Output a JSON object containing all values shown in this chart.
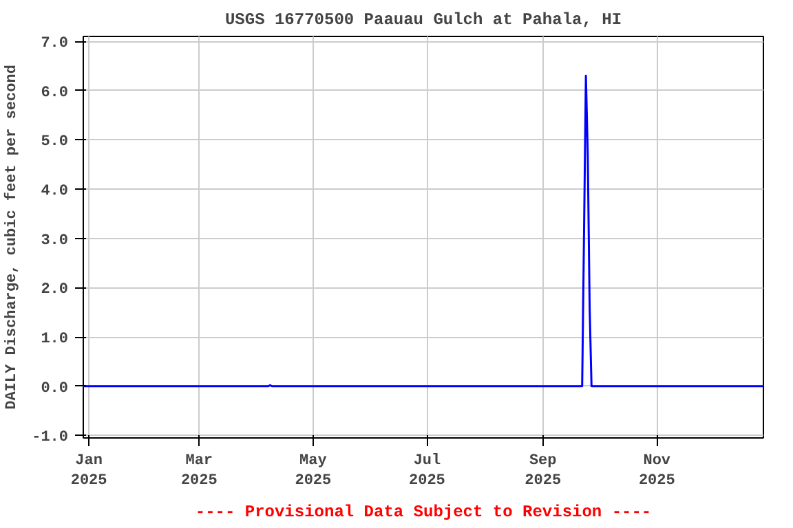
{
  "chart_data": {
    "type": "line",
    "title": "USGS 16770500 Paauau Gulch at Pahala, HI",
    "ylabel": "DAILY Discharge, cubic feet per second",
    "annotations": [
      "---- Provisional Data Subject to Revision ----"
    ],
    "x": [
      "2024-12-29",
      "2025-04-07",
      "2025-04-08",
      "2025-04-09",
      "2025-09-22",
      "2025-09-23",
      "2025-09-24",
      "2025-09-25",
      "2025-09-26",
      "2025-09-27",
      "2025-12-28"
    ],
    "series": [
      {
        "color": "#0000ff",
        "values": [
          0,
          0,
          0.02,
          0,
          0,
          3.1,
          6.3,
          4.7,
          1.6,
          0,
          0
        ]
      }
    ],
    "xlim": [
      "2024-12-29",
      "2025-12-28"
    ],
    "xticks": [
      {
        "value": "2025-01-01",
        "label": "Jan\n2025"
      },
      {
        "value": "2025-03-01",
        "label": "Mar\n2025"
      },
      {
        "value": "2025-05-01",
        "label": "May\n2025"
      },
      {
        "value": "2025-07-01",
        "label": "Jul\n2025"
      },
      {
        "value": "2025-09-01",
        "label": "Sep\n2025"
      },
      {
        "value": "2025-11-01",
        "label": "Nov\n2025"
      }
    ],
    "ylim": [
      -1.05,
      7.1
    ],
    "yticks": [
      {
        "value": -1,
        "label": "-1.0"
      },
      {
        "value": 0,
        "label": "0.0"
      },
      {
        "value": 1,
        "label": "1.0"
      },
      {
        "value": 2,
        "label": "2.0"
      },
      {
        "value": 3,
        "label": "3.0"
      },
      {
        "value": 4,
        "label": "4.0"
      },
      {
        "value": 5,
        "label": "5.0"
      },
      {
        "value": 6,
        "label": "6.0"
      },
      {
        "value": 7,
        "label": "7.0"
      }
    ],
    "grid": true,
    "marker": "none",
    "line_style": "solid"
  }
}
